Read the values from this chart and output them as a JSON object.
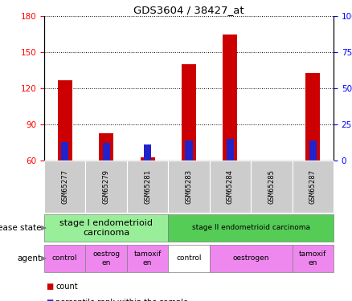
{
  "title": "GDS3604 / 38427_at",
  "samples": [
    "GSM65277",
    "GSM65279",
    "GSM65281",
    "GSM65283",
    "GSM65284",
    "GSM65285",
    "GSM65287"
  ],
  "count_values": [
    127,
    83,
    63,
    140,
    165,
    60,
    133
  ],
  "percentile_values": [
    13,
    12,
    11,
    14,
    15,
    0,
    14
  ],
  "ymin": 60,
  "ymax": 180,
  "yticks": [
    60,
    90,
    120,
    150,
    180
  ],
  "right_ytick_values": [
    0,
    25,
    50,
    75,
    100
  ],
  "bar_width": 0.35,
  "pct_bar_width": 0.18,
  "count_color": "#cc0000",
  "percentile_color": "#2222cc",
  "sample_bg_color": "#cccccc",
  "disease_state_labels": [
    {
      "label": "stage I endometrioid\ncarcinoma",
      "start": 0,
      "end": 2,
      "color": "#99ee99"
    },
    {
      "label": "stage II endometrioid carcinoma",
      "start": 3,
      "end": 6,
      "color": "#55cc55"
    }
  ],
  "agent_labels": [
    {
      "label": "control",
      "start": 0,
      "end": 0,
      "color": "#ee88ee"
    },
    {
      "label": "oestrog\nen",
      "start": 1,
      "end": 1,
      "color": "#ee88ee"
    },
    {
      "label": "tamoxif\nen",
      "start": 2,
      "end": 2,
      "color": "#ee88ee"
    },
    {
      "label": "control",
      "start": 3,
      "end": 3,
      "color": "#ffffff"
    },
    {
      "label": "oestrogen",
      "start": 4,
      "end": 5,
      "color": "#ee88ee"
    },
    {
      "label": "tamoxif\nen",
      "start": 6,
      "end": 6,
      "color": "#ee88ee"
    }
  ]
}
